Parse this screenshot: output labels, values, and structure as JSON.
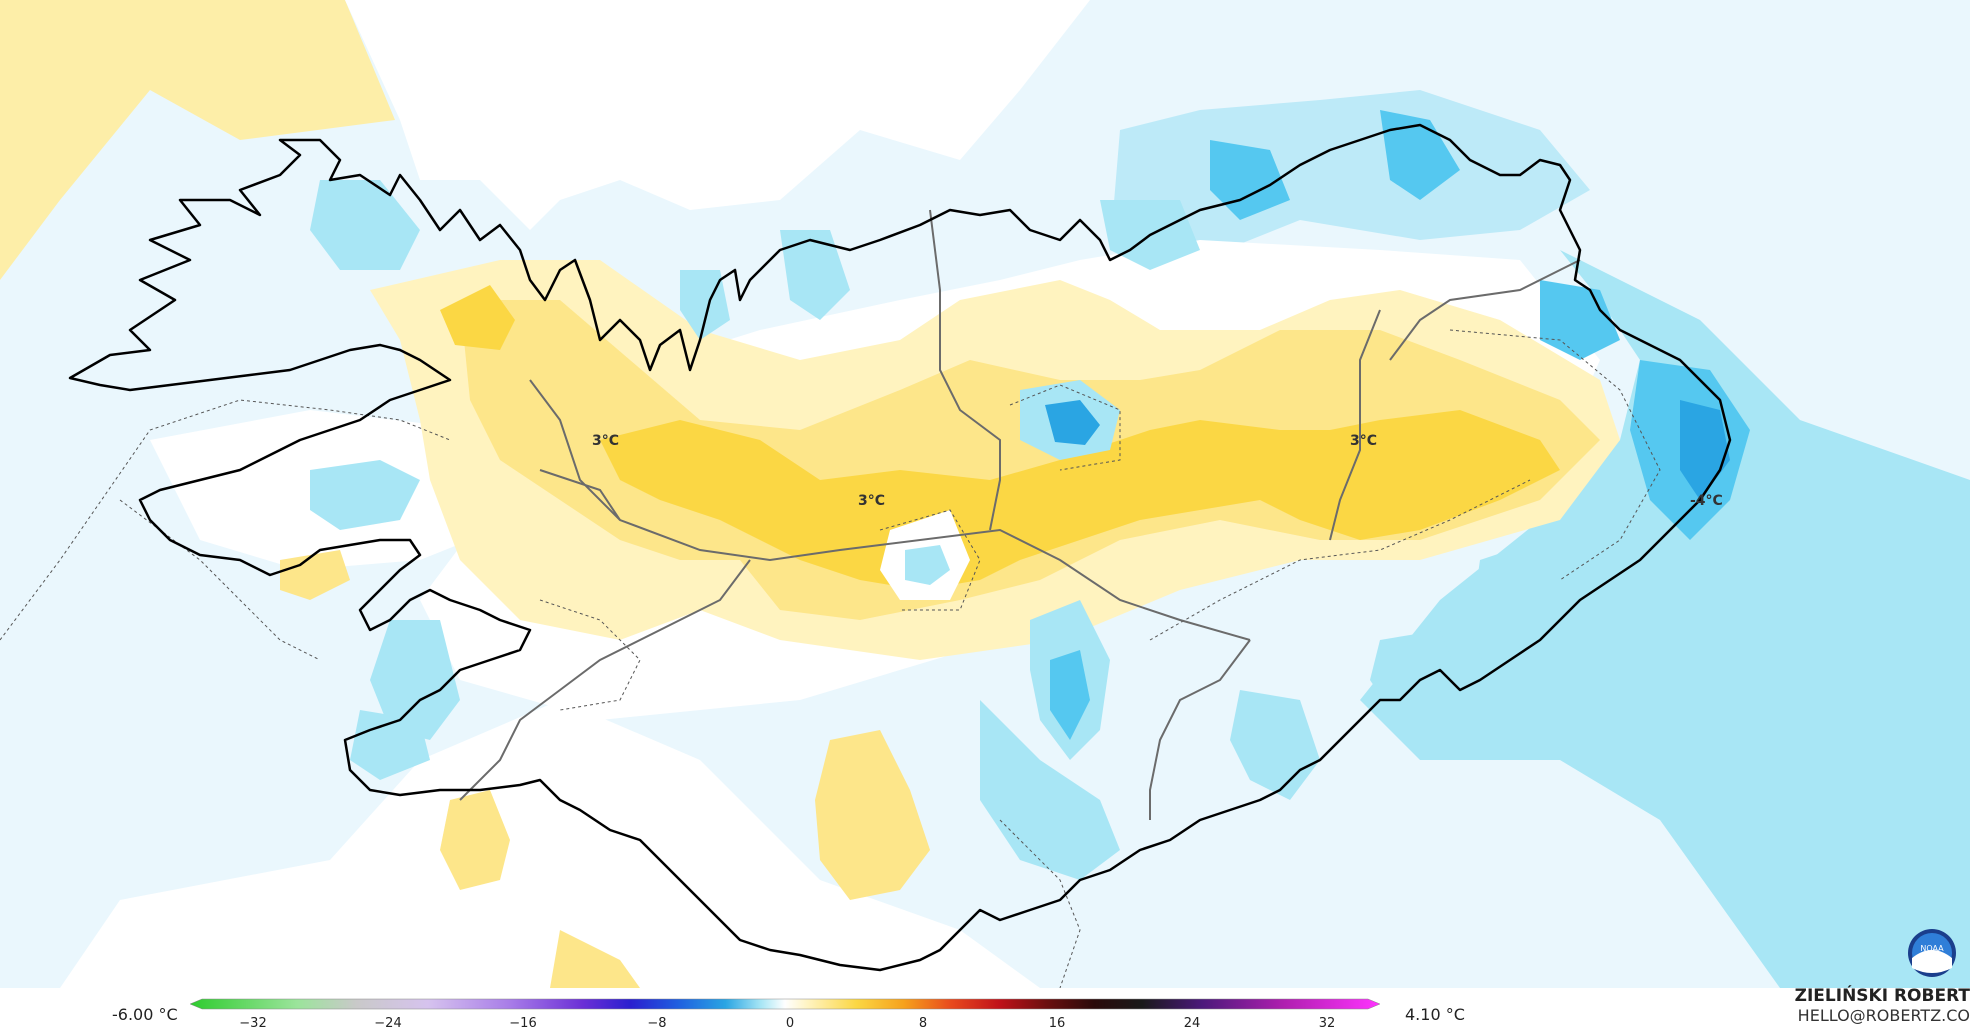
{
  "map": {
    "labels": [
      "3°C",
      "3°C",
      "3°C",
      "-4°C"
    ],
    "colors": {
      "ocean_light": "#eaf7fd",
      "ocean_mid": "#bdeaf8",
      "ocean_cyan": "#a8e6f5",
      "cold_1": "#9fdff5",
      "cold_2": "#55c8f0",
      "cold_3": "#2aa5e3",
      "warm_1": "#fff3bf",
      "warm_2": "#fde68a",
      "warm_3": "#fbd744",
      "coast": "#000000",
      "border": "#666666"
    }
  },
  "legend": {
    "min_label": "-6.00 °C",
    "max_label": "4.10 °C",
    "ticks": [
      "−32",
      "−24",
      "−16",
      "−8",
      "0",
      "8",
      "16",
      "24",
      "32"
    ]
  },
  "credit": {
    "name": "ZIELIŃSKI ROBERT",
    "email": "HELLO@ROBERTZ.CO"
  },
  "logo": {
    "text": "NOAA"
  }
}
